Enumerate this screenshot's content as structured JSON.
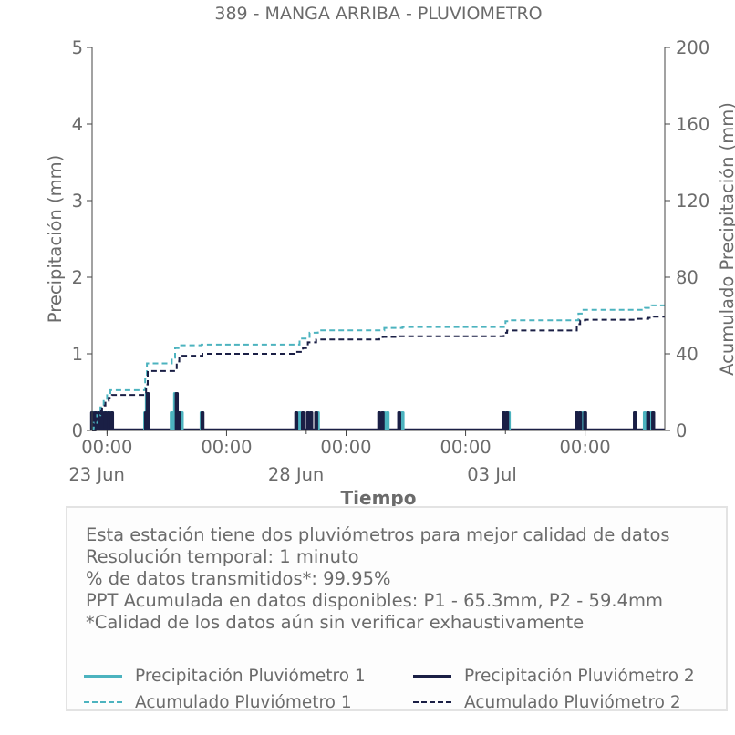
{
  "chart_data": {
    "type": "bar",
    "title": "389 - MANGA ARRIBA - PLUVIOMETRO",
    "xlabel": "Tiempo",
    "ylabel": "Precipitación (mm)",
    "y2label": "Acumulado Precipitación (mm)",
    "ylim": [
      0,
      5
    ],
    "y2lim": [
      0,
      200
    ],
    "yticks": [
      "0",
      "1",
      "2",
      "3",
      "4",
      "5"
    ],
    "y2ticks": [
      "0",
      "40",
      "80",
      "120",
      "160",
      "200"
    ],
    "xlim": [
      "2023-06-22T15:00",
      "2023-07-07T00:00"
    ],
    "xticks_time": [
      "00:00",
      "00:00",
      "00:00",
      "00:00",
      "00:00"
    ],
    "xticks_date": [
      "23 Jun",
      "28 Jun",
      "03 Jul"
    ],
    "grid": false,
    "series": [
      {
        "name": "Precipitación Pluviómetro 1",
        "kind": "bar",
        "axis": "left",
        "color": "#4cb3bf",
        "points": [
          [
            "2023-06-22T16:00",
            0.25
          ],
          [
            "2023-06-22T18:00",
            0.25
          ],
          [
            "2023-06-22T20:00",
            0.25
          ],
          [
            "2023-06-22T22:00",
            0.25
          ],
          [
            "2023-06-23T00:00",
            0.25
          ],
          [
            "2023-06-23T02:00",
            0.25
          ],
          [
            "2023-06-23T23:00",
            0.25
          ],
          [
            "2023-06-24T00:00",
            0.5
          ],
          [
            "2023-06-24T15:00",
            0.25
          ],
          [
            "2023-06-24T17:00",
            0.5
          ],
          [
            "2023-06-24T19:00",
            0.25
          ],
          [
            "2023-06-24T21:00",
            0.25
          ],
          [
            "2023-06-25T09:00",
            0.25
          ],
          [
            "2023-06-27T20:00",
            0.25
          ],
          [
            "2023-06-28T02:00",
            0.25
          ],
          [
            "2023-06-28T07:00",
            0.25
          ],
          [
            "2023-06-29T23:00",
            0.25
          ],
          [
            "2023-06-30T01:00",
            0.25
          ],
          [
            "2023-06-30T10:00",
            0.25
          ],
          [
            "2023-07-03T00:00",
            0.25
          ],
          [
            "2023-07-03T02:00",
            0.25
          ],
          [
            "2023-07-04T20:00",
            0.25
          ],
          [
            "2023-07-04T23:00",
            0.25
          ],
          [
            "2023-07-06T12:00",
            0.25
          ],
          [
            "2023-07-06T16:00",
            0.25
          ]
        ]
      },
      {
        "name": "Precipitación Pluviómetro 2",
        "kind": "bar",
        "axis": "left",
        "color": "#1a1f45",
        "points": [
          [
            "2023-06-22T15:00",
            0.25
          ],
          [
            "2023-06-22T17:00",
            0.25
          ],
          [
            "2023-06-22T19:00",
            0.25
          ],
          [
            "2023-06-22T21:00",
            0.25
          ],
          [
            "2023-06-22T23:00",
            0.25
          ],
          [
            "2023-06-23T01:00",
            0.25
          ],
          [
            "2023-06-23T03:00",
            0.25
          ],
          [
            "2023-06-23T23:30",
            0.25
          ],
          [
            "2023-06-24T00:30",
            0.5
          ],
          [
            "2023-06-24T18:00",
            0.5
          ],
          [
            "2023-06-24T19:30",
            0.25
          ],
          [
            "2023-06-25T09:30",
            0.25
          ],
          [
            "2023-06-27T18:00",
            0.25
          ],
          [
            "2023-06-27T22:00",
            0.25
          ],
          [
            "2023-06-28T01:00",
            0.25
          ],
          [
            "2023-06-28T03:00",
            0.25
          ],
          [
            "2023-06-28T06:00",
            0.25
          ],
          [
            "2023-06-29T20:00",
            0.25
          ],
          [
            "2023-06-29T22:00",
            0.25
          ],
          [
            "2023-06-30T08:00",
            0.25
          ],
          [
            "2023-07-02T23:00",
            0.25
          ],
          [
            "2023-07-03T01:00",
            0.25
          ],
          [
            "2023-07-04T19:00",
            0.25
          ],
          [
            "2023-07-04T21:00",
            0.25
          ],
          [
            "2023-07-05T00:00",
            0.25
          ],
          [
            "2023-07-06T06:00",
            0.25
          ],
          [
            "2023-07-06T14:00",
            0.25
          ],
          [
            "2023-07-06T17:00",
            0.25
          ]
        ]
      },
      {
        "name": "Acumulado Pluviómetro 1",
        "kind": "step",
        "axis": "right",
        "color": "#4cb3bf",
        "points": [
          [
            "2023-06-22T15:00",
            0
          ],
          [
            "2023-06-22T16:00",
            4
          ],
          [
            "2023-06-22T18:00",
            8
          ],
          [
            "2023-06-22T20:00",
            12
          ],
          [
            "2023-06-22T22:00",
            16
          ],
          [
            "2023-06-23T00:00",
            19
          ],
          [
            "2023-06-23T02:00",
            21
          ],
          [
            "2023-06-23T23:00",
            27
          ],
          [
            "2023-06-24T00:00",
            35
          ],
          [
            "2023-06-24T15:00",
            38
          ],
          [
            "2023-06-24T17:00",
            43
          ],
          [
            "2023-06-24T19:00",
            44.5
          ],
          [
            "2023-06-25T09:00",
            44.8
          ],
          [
            "2023-06-27T20:00",
            48
          ],
          [
            "2023-06-28T02:00",
            51
          ],
          [
            "2023-06-28T07:00",
            52.3
          ],
          [
            "2023-06-29T23:00",
            53.5
          ],
          [
            "2023-06-30T10:00",
            54
          ],
          [
            "2023-07-03T00:00",
            57
          ],
          [
            "2023-07-03T02:00",
            57.5
          ],
          [
            "2023-07-04T20:00",
            61
          ],
          [
            "2023-07-04T23:00",
            63
          ],
          [
            "2023-07-06T12:00",
            64
          ],
          [
            "2023-07-06T16:00",
            65.3
          ],
          [
            "2023-07-07T00:00",
            65.3
          ]
        ]
      },
      {
        "name": "Acumulado Pluviómetro 2",
        "kind": "step",
        "axis": "right",
        "color": "#1a1f45",
        "points": [
          [
            "2023-06-22T15:00",
            0
          ],
          [
            "2023-06-22T17:00",
            5
          ],
          [
            "2023-06-22T19:00",
            10
          ],
          [
            "2023-06-22T21:00",
            13
          ],
          [
            "2023-06-22T23:00",
            15.5
          ],
          [
            "2023-06-23T01:00",
            17
          ],
          [
            "2023-06-23T03:00",
            18.5
          ],
          [
            "2023-06-23T23:30",
            24
          ],
          [
            "2023-06-24T00:30",
            31
          ],
          [
            "2023-06-24T18:00",
            36
          ],
          [
            "2023-06-24T19:30",
            39
          ],
          [
            "2023-06-25T09:30",
            40
          ],
          [
            "2023-06-27T18:00",
            41
          ],
          [
            "2023-06-27T22:00",
            43
          ],
          [
            "2023-06-28T01:00",
            46
          ],
          [
            "2023-06-28T06:00",
            47.5
          ],
          [
            "2023-06-29T20:00",
            48.3
          ],
          [
            "2023-06-29T22:00",
            48.8
          ],
          [
            "2023-06-30T08:00",
            49.2
          ],
          [
            "2023-07-02T23:00",
            51
          ],
          [
            "2023-07-03T01:00",
            52.2
          ],
          [
            "2023-07-04T19:00",
            55.5
          ],
          [
            "2023-07-04T21:00",
            57.5
          ],
          [
            "2023-07-05T00:00",
            57.8
          ],
          [
            "2023-07-06T06:00",
            58.3
          ],
          [
            "2023-07-06T14:00",
            58.8
          ],
          [
            "2023-07-06T17:00",
            59.4
          ],
          [
            "2023-07-07T00:00",
            59.4
          ]
        ]
      }
    ]
  },
  "info": {
    "line1": "Esta estación tiene dos pluviómetros para mejor calidad de datos",
    "line2": "Resolución temporal: 1 minuto",
    "line3": "% de datos transmitidos*: 99.95%",
    "line4": "PPT Acumulada en datos disponibles: P1 - 65.3mm, P2 - 59.4mm",
    "line5": "*Calidad de los datos aún sin verificar exhaustivamente"
  },
  "legend": {
    "p1": "Precipitación Pluviómetro 1",
    "p2": "Precipitación Pluviómetro 2",
    "a1": "Acumulado Pluviómetro 1",
    "a2": "Acumulado Pluviómetro 2"
  }
}
